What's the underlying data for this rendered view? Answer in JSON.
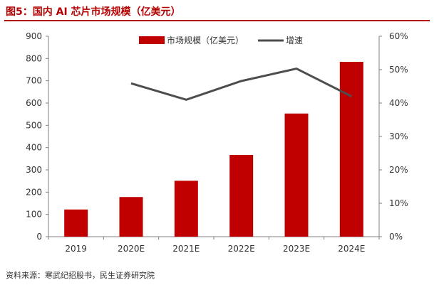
{
  "header": {
    "title": "图5：国内 AI 芯片市场规模（亿美元）"
  },
  "footer": {
    "source": "资料来源：寒武纪招股书，民生证券研究院"
  },
  "colors": {
    "accent": "#b30000",
    "bar": "#c00000",
    "line": "#4d4d4d",
    "axis": "#7f7f7f"
  },
  "chart_data": {
    "type": "bar",
    "categories": [
      "2019",
      "2020E",
      "2021E",
      "2022E",
      "2023E",
      "2024E"
    ],
    "series": [
      {
        "name": "市场规模（亿美元）",
        "type": "bar",
        "axis": "left",
        "values": [
          122,
          178,
          251,
          367,
          553,
          785
        ]
      },
      {
        "name": "增速",
        "type": "line",
        "axis": "right",
        "values": [
          null,
          0.459,
          0.41,
          0.466,
          0.503,
          0.42
        ]
      }
    ],
    "y_left": {
      "min": 0,
      "max": 900,
      "step": 100,
      "ticks": [
        "0",
        "100",
        "200",
        "300",
        "400",
        "500",
        "600",
        "700",
        "800",
        "900"
      ]
    },
    "y_right": {
      "min": 0,
      "max": 0.6,
      "step": 0.1,
      "ticks": [
        "0%",
        "10%",
        "20%",
        "30%",
        "40%",
        "50%",
        "60%"
      ]
    },
    "legend_position": "top-center",
    "grid": false
  }
}
